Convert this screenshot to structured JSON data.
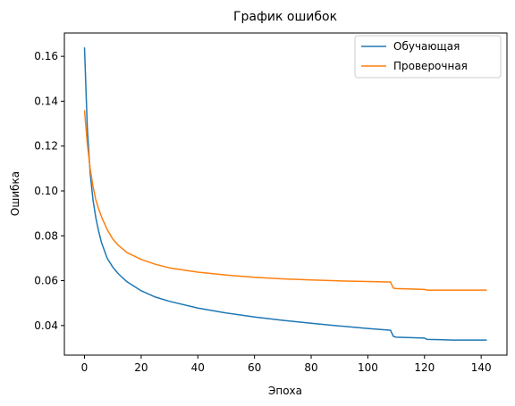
{
  "chart_data": {
    "type": "line",
    "title": "График ошибок",
    "xlabel": "Эпоха",
    "ylabel": "Ошибка",
    "xlim": [
      -7.1,
      149.1
    ],
    "ylim": [
      0.0268,
      0.1704
    ],
    "xticks": [
      0,
      20,
      40,
      60,
      80,
      100,
      120,
      140
    ],
    "yticks": [
      0.04,
      0.06,
      0.08,
      0.1,
      0.12,
      0.14,
      0.16
    ],
    "ytick_labels": [
      "0.04",
      "0.06",
      "0.08",
      "0.10",
      "0.12",
      "0.14",
      "0.16"
    ],
    "grid": false,
    "legend_position": "top-right",
    "series": [
      {
        "name": "Обучающая",
        "color": "#1f77b4",
        "x": [
          0,
          1,
          2,
          3,
          4,
          5,
          6,
          8,
          10,
          12,
          15,
          20,
          25,
          30,
          40,
          50,
          60,
          70,
          80,
          90,
          100,
          107,
          108,
          109,
          110,
          115,
          120,
          121,
          125,
          130,
          135,
          142
        ],
        "y": [
          0.164,
          0.128,
          0.108,
          0.096,
          0.088,
          0.082,
          0.077,
          0.07,
          0.066,
          0.063,
          0.0595,
          0.0555,
          0.0527,
          0.0508,
          0.0478,
          0.0456,
          0.0438,
          0.0423,
          0.041,
          0.0398,
          0.0387,
          0.038,
          0.0379,
          0.0352,
          0.0348,
          0.0346,
          0.0344,
          0.0338,
          0.0337,
          0.0335,
          0.0335,
          0.0335
        ]
      },
      {
        "name": "Проверочная",
        "color": "#ff7f0e",
        "x": [
          0,
          1,
          2,
          3,
          4,
          5,
          6,
          8,
          10,
          12,
          15,
          20,
          25,
          30,
          40,
          50,
          60,
          70,
          80,
          90,
          100,
          107,
          108,
          109,
          110,
          115,
          120,
          121,
          125,
          130,
          135,
          142
        ],
        "y": [
          0.136,
          0.121,
          0.11,
          0.102,
          0.096,
          0.092,
          0.0885,
          0.0828,
          0.0785,
          0.0757,
          0.0725,
          0.0695,
          0.0673,
          0.0657,
          0.0638,
          0.0625,
          0.0615,
          0.0608,
          0.0603,
          0.0599,
          0.0596,
          0.0594,
          0.0594,
          0.0567,
          0.0565,
          0.0563,
          0.0561,
          0.0558,
          0.0558,
          0.0558,
          0.0558,
          0.0558
        ]
      }
    ]
  }
}
